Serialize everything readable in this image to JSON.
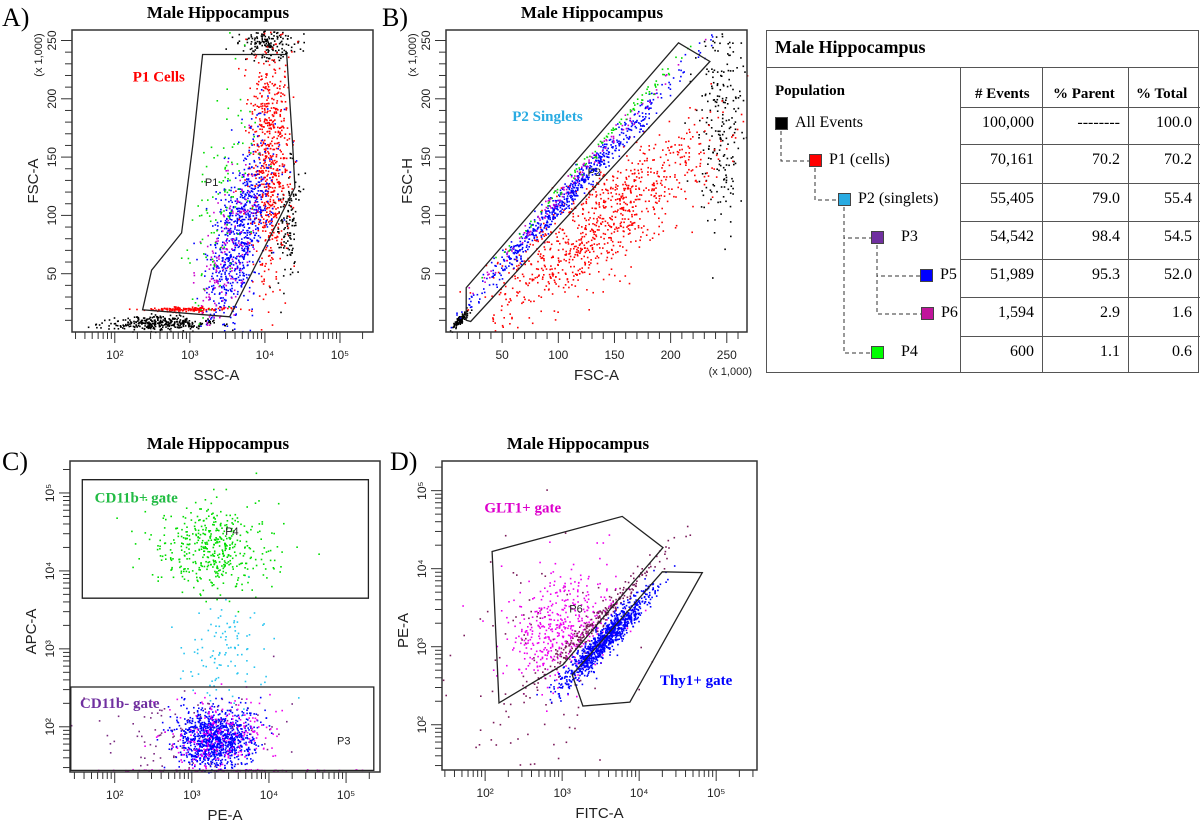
{
  "chart_data": [
    {
      "id": "A",
      "type": "scatter",
      "panel_label": "A)",
      "title": "Male Hippocampus",
      "xlabel": "SSC-A",
      "ylabel": "FSC-A",
      "xscale": "log10",
      "yscale": "linear",
      "x_units": "log10(SSC-A)",
      "y_units": "FSC-A (x 1,000)",
      "xlim": [
        1.43,
        5.44
      ],
      "ylim": [
        0,
        259
      ],
      "y_multiplier": "(x 1,000)",
      "x_multiplier": null,
      "xticks": [
        {
          "v": 2,
          "label": "10²"
        },
        {
          "v": 3,
          "label": "10³"
        },
        {
          "v": 4,
          "label": "10⁴"
        },
        {
          "v": 5,
          "label": "10⁵"
        }
      ],
      "yticks": [
        {
          "v": 50,
          "label": "50"
        },
        {
          "v": 100,
          "label": "100"
        },
        {
          "v": 150,
          "label": "150"
        },
        {
          "v": 200,
          "label": "200"
        },
        {
          "v": 250,
          "label": "250"
        }
      ],
      "y_minor_step": 10,
      "gates": [
        {
          "name": "P1",
          "color": "#222222",
          "points": [
            [
              3.17,
              238
            ],
            [
              4.29,
              238
            ],
            [
              4.37,
              160
            ],
            [
              4.4,
              124
            ],
            [
              3.53,
              13
            ],
            [
              2.37,
              19
            ],
            [
              2.49,
              53
            ],
            [
              2.89,
              85
            ],
            [
              3.04,
              161
            ]
          ],
          "name_pos": [
            3.29,
            125
          ]
        }
      ],
      "annotations": [
        {
          "text": "P1 Cells",
          "color": "#ff0000",
          "pos": [
            2.24,
            215
          ]
        }
      ],
      "populations": [
        {
          "name": "All Events (debris)",
          "color": "#000000",
          "n": 350,
          "mx": 2.55,
          "sx": 0.35,
          "a": 8,
          "b": 0,
          "sy": 3
        },
        {
          "name": "All Events (high FSC)",
          "color": "#000000",
          "n": 180,
          "mx": 4.05,
          "sx": 0.2,
          "a": 248,
          "b": 0,
          "sy": 8
        },
        {
          "name": "All Events (edge)",
          "color": "#000000",
          "n": 120,
          "mx": 4.3,
          "sx": 0.08,
          "a": -640,
          "b": 170,
          "sy": 25
        },
        {
          "name": "P1 cells",
          "color": "#ff0000",
          "n": 650,
          "mx": 4.05,
          "sx": 0.14,
          "a": 150,
          "b": 0,
          "sy": 55
        },
        {
          "name": "P1 low strip",
          "color": "#ff0000",
          "n": 150,
          "mx": 3.0,
          "sx": 0.28,
          "a": 20,
          "b": 0,
          "sy": 1
        },
        {
          "name": "P5",
          "color": "#0000ff",
          "n": 750,
          "mx": 3.65,
          "sx": 0.22,
          "a": -280,
          "b": 100,
          "sy": 32
        },
        {
          "name": "P6",
          "color": "#cc00cc",
          "n": 170,
          "mx": 3.5,
          "sx": 0.2,
          "a": -280,
          "b": 100,
          "sy": 28
        },
        {
          "name": "P4",
          "color": "#00dd00",
          "n": 120,
          "mx": 3.4,
          "sx": 0.25,
          "a": -500,
          "b": 180,
          "sy": 40
        }
      ]
    },
    {
      "id": "B",
      "type": "scatter",
      "panel_label": "B)",
      "title": "Male Hippocampus",
      "xlabel": "FSC-A",
      "ylabel": "FSC-H",
      "xscale": "linear",
      "yscale": "linear",
      "x_units": "FSC-A (x 1,000)",
      "y_units": "FSC-H (x 1,000)",
      "xlim": [
        0,
        268
      ],
      "ylim": [
        0,
        259
      ],
      "y_multiplier": "(x 1,000)",
      "x_multiplier": "(x 1,000)",
      "xticks": [
        {
          "v": 50,
          "label": "50"
        },
        {
          "v": 100,
          "label": "100"
        },
        {
          "v": 150,
          "label": "150"
        },
        {
          "v": 200,
          "label": "200"
        },
        {
          "v": 250,
          "label": "250"
        }
      ],
      "yticks": [
        {
          "v": 50,
          "label": "50"
        },
        {
          "v": 100,
          "label": "100"
        },
        {
          "v": 150,
          "label": "150"
        },
        {
          "v": 200,
          "label": "200"
        },
        {
          "v": 250,
          "label": "250"
        }
      ],
      "x_minor_step": 10,
      "y_minor_step": 10,
      "gates": [
        {
          "name": "P2",
          "color": "#222222",
          "points": [
            [
              18,
              10
            ],
            [
              18,
              38
            ],
            [
              207,
              248
            ],
            [
              235,
              232
            ],
            [
              22,
              9
            ]
          ],
          "name_pos": [
            132,
            134
          ]
        }
      ],
      "annotations": [
        {
          "text": "P2 Singlets",
          "color": "#29abe2",
          "pos": [
            59,
            181
          ]
        }
      ],
      "populations": [
        {
          "name": "All Events",
          "color": "#000000",
          "n": 220,
          "mx": 245,
          "sx": 11,
          "a": 175,
          "b": 0,
          "sy": 45
        },
        {
          "name": "All Events (debris)",
          "color": "#000000",
          "n": 90,
          "mx": 12,
          "sx": 4,
          "a": 0,
          "b": 0.9,
          "sy": 2
        },
        {
          "name": "P1 cells",
          "color": "#ff0000",
          "n": 900,
          "mx": 140,
          "sx": 50,
          "a": 0,
          "b": 0.68,
          "sy": 22
        },
        {
          "name": "P5",
          "color": "#0000ff",
          "n": 650,
          "mx": 110,
          "sx": 45,
          "a": 4,
          "b": 1.05,
          "sy": 6
        },
        {
          "name": "P6",
          "color": "#cc00cc",
          "n": 130,
          "mx": 110,
          "sx": 45,
          "a": 9,
          "b": 1.07,
          "sy": 4
        },
        {
          "name": "P4",
          "color": "#00dd00",
          "n": 100,
          "mx": 140,
          "sx": 50,
          "a": 13,
          "b": 1.08,
          "sy": 3
        }
      ]
    },
    {
      "id": "C",
      "type": "scatter",
      "panel_label": "C)",
      "title": "Male Hippocampus",
      "xlabel": "PE-A",
      "ylabel": "APC-A",
      "xscale": "log10",
      "yscale": "log10",
      "x_units": "log10(PE-A)",
      "y_units": "log10(APC-A)",
      "xlim": [
        1.42,
        5.44
      ],
      "ylim": [
        1.42,
        5.41
      ],
      "y_multiplier": null,
      "x_multiplier": null,
      "xticks": [
        {
          "v": 2,
          "label": "10²"
        },
        {
          "v": 3,
          "label": "10³"
        },
        {
          "v": 4,
          "label": "10⁴"
        },
        {
          "v": 5,
          "label": "10⁵"
        }
      ],
      "yticks": [
        {
          "v": 2,
          "label": "10²"
        },
        {
          "v": 3,
          "label": "10³"
        },
        {
          "v": 4,
          "label": "10⁴"
        },
        {
          "v": 5,
          "label": "10⁵"
        }
      ],
      "gates": [
        {
          "name": "P4",
          "color": "#222222",
          "points": [
            [
              1.58,
              5.17
            ],
            [
              5.29,
              5.17
            ],
            [
              5.29,
              3.65
            ],
            [
              1.58,
              3.65
            ]
          ],
          "name_pos": [
            3.52,
            4.46
          ]
        },
        {
          "name": "P3",
          "color": "#222222",
          "points": [
            [
              1.43,
              2.51
            ],
            [
              5.36,
              2.51
            ],
            [
              5.36,
              1.44
            ],
            [
              1.43,
              1.44
            ]
          ],
          "name_pos": [
            4.97,
            1.77
          ]
        }
      ],
      "annotations": [
        {
          "text": "CD11b+ gate",
          "color": "#22bb44",
          "pos": [
            1.74,
            4.88
          ]
        },
        {
          "text": "CD11b- gate",
          "color": "#7030a0",
          "pos": [
            1.55,
            2.24
          ]
        }
      ],
      "populations": [
        {
          "name": "P4",
          "color": "#00dd00",
          "n": 450,
          "mx": 3.3,
          "sx": 0.38,
          "a": 4.3,
          "b": 0,
          "sy": 0.28
        },
        {
          "name": "P2 (singlets)",
          "color": "#29c5f0",
          "n": 110,
          "mx": 3.4,
          "sx": 0.25,
          "a": 3.0,
          "b": 0,
          "sy": 0.35
        },
        {
          "name": "P3",
          "color": "#7a2a80",
          "n": 120,
          "mx": 3.0,
          "sx": 0.6,
          "a": 1.9,
          "b": 0,
          "sy": 0.3
        },
        {
          "name": "P5",
          "color": "#0000ff",
          "n": 1000,
          "mx": 3.3,
          "sx": 0.25,
          "a": 1.85,
          "b": 0,
          "sy": 0.2
        },
        {
          "name": "P6",
          "color": "#ee00ee",
          "n": 220,
          "mx": 3.4,
          "sx": 0.35,
          "a": 1.9,
          "b": 0,
          "sy": 0.25
        },
        {
          "name": "P6 (axis)",
          "color": "#ee00ee",
          "n": 70,
          "mx": 3.5,
          "sx": 0.8,
          "a": 1.45,
          "b": 0,
          "sy": 0.005
        }
      ]
    },
    {
      "id": "D",
      "type": "scatter",
      "panel_label": "D)",
      "title": "Male Hippocampus",
      "xlabel": "FITC-A",
      "ylabel": "PE-A",
      "xscale": "log10",
      "yscale": "log10",
      "x_units": "log10(FITC-A)",
      "y_units": "log10(PE-A)",
      "xlim": [
        1.44,
        5.53
      ],
      "ylim": [
        1.42,
        5.38
      ],
      "y_multiplier": null,
      "x_multiplier": null,
      "xticks": [
        {
          "v": 2,
          "label": "10²"
        },
        {
          "v": 3,
          "label": "10³"
        },
        {
          "v": 4,
          "label": "10⁴"
        },
        {
          "v": 5,
          "label": "10⁵"
        }
      ],
      "yticks": [
        {
          "v": 2,
          "label": "10²"
        },
        {
          "v": 3,
          "label": "10³"
        },
        {
          "v": 4,
          "label": "10⁴"
        },
        {
          "v": 5,
          "label": "10⁵"
        }
      ],
      "gates": [
        {
          "name": "P6",
          "color": "#222222",
          "points": [
            [
              2.09,
              4.22
            ],
            [
              3.78,
              4.67
            ],
            [
              4.31,
              4.27
            ],
            [
              3.01,
              2.77
            ],
            [
              2.18,
              2.28
            ]
          ],
          "name_pos": [
            3.18,
            3.44
          ]
        },
        {
          "name": "P5",
          "color": "#222222",
          "points": [
            [
              4.3,
              3.96
            ],
            [
              4.82,
              3.95
            ],
            [
              3.88,
              2.29
            ],
            [
              3.27,
              2.24
            ],
            [
              3.13,
              2.64
            ]
          ],
          "name_pos": null
        }
      ],
      "annotations": [
        {
          "text": "GLT1+ gate",
          "color": "#dd00cc",
          "pos": [
            1.99,
            4.72
          ]
        },
        {
          "text": "Thy1+ gate",
          "color": "#0000ff",
          "pos": [
            4.27,
            2.51
          ]
        }
      ],
      "populations": [
        {
          "name": "P3 scattered",
          "color": "#7a1a5a",
          "n": 90,
          "mx": 2.6,
          "sx": 0.6,
          "a": 2.8,
          "b": 0,
          "sy": 0.8
        },
        {
          "name": "P6",
          "color": "#ee00ee",
          "n": 450,
          "mx": 3.0,
          "sx": 0.35,
          "a": 2.4,
          "b": 0.3,
          "sy": 0.33
        },
        {
          "name": "P3 diagonal",
          "color": "#7a1a5a",
          "n": 260,
          "mx": 3.45,
          "sx": 0.45,
          "a": -0.1,
          "b": 1.0,
          "sy": 0.08
        },
        {
          "name": "P5",
          "color": "#0000ff",
          "n": 1000,
          "mx": 3.55,
          "sx": 0.28,
          "a": -0.45,
          "b": 1.0,
          "sy": 0.1
        }
      ]
    }
  ],
  "table": {
    "title": "Male Hippocampus",
    "headers": {
      "population": "Population",
      "events": "# Events",
      "parent": "% Parent",
      "total": "% Total"
    },
    "rows": [
      {
        "name": "All Events",
        "color": "#000000",
        "events": "100,000",
        "parent": "--------",
        "total": "100.0"
      },
      {
        "name": "P1 (cells)",
        "color": "#ff0000",
        "events": "70,161",
        "parent": "70.2",
        "total": "70.2"
      },
      {
        "name": "P2 (singlets)",
        "color": "#29abe2",
        "events": "55,405",
        "parent": "79.0",
        "total": "55.4"
      },
      {
        "name": "P3",
        "color": "#7030a0",
        "events": "54,542",
        "parent": "98.4",
        "total": "54.5"
      },
      {
        "name": "P5",
        "color": "#0000ff",
        "events": "51,989",
        "parent": "95.3",
        "total": "52.0"
      },
      {
        "name": "P6",
        "color": "#c0149b",
        "events": "1,594",
        "parent": "2.9",
        "total": "1.6"
      },
      {
        "name": "P4",
        "color": "#00ff00",
        "events": "600",
        "parent": "1.1",
        "total": "0.6"
      }
    ]
  }
}
